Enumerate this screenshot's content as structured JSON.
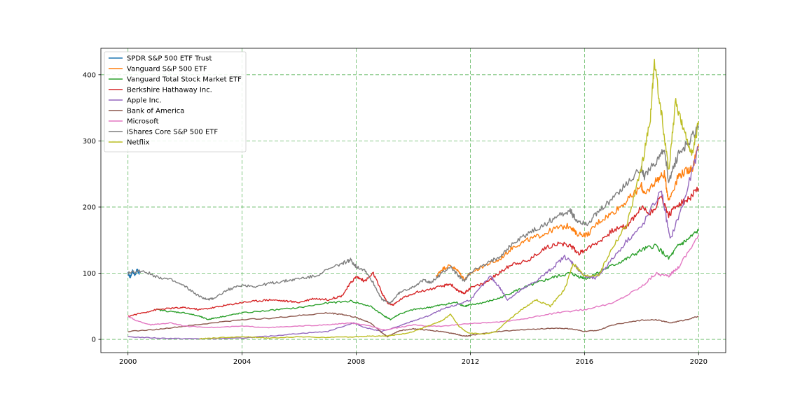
{
  "chart_data": {
    "type": "line",
    "title": "",
    "xlabel": "",
    "ylabel": "",
    "xlim": [
      1999.05,
      2020.95
    ],
    "ylim": [
      -20,
      440
    ],
    "xticks": [
      2000,
      2004,
      2008,
      2012,
      2016,
      2020
    ],
    "yticks": [
      0,
      100,
      200,
      300,
      400
    ],
    "grid": true,
    "legend_position": "upper-left",
    "series": [
      {
        "name": "SPDR S&P 500 ETF Trust",
        "color": "#1f77b4",
        "x": [
          2000.0,
          2000.08,
          2000.16,
          2000.24,
          2000.32,
          2000.4
        ],
        "y": [
          100,
          94,
          104,
          97,
          105,
          99
        ]
      },
      {
        "name": "Vanguard S&P 500 ETF",
        "color": "#ff7f0e",
        "x": [
          2010.8,
          2011.0,
          2011.3,
          2011.6,
          2011.8,
          2012.0,
          2012.5,
          2013.0,
          2013.5,
          2014.0,
          2014.5,
          2015.0,
          2015.5,
          2015.7,
          2016.1,
          2016.5,
          2017.0,
          2017.5,
          2018.0,
          2018.1,
          2018.5,
          2018.8,
          2018.95,
          2019.3,
          2019.6,
          2019.8,
          2020.0
        ],
        "y": [
          95,
          106,
          112,
          102,
          90,
          100,
          112,
          120,
          140,
          150,
          158,
          168,
          172,
          160,
          158,
          178,
          192,
          210,
          232,
          218,
          240,
          250,
          210,
          248,
          255,
          260,
          295
        ]
      },
      {
        "name": "Vanguard Total Stock Market ETF",
        "color": "#2ca02c",
        "x": [
          2001.0,
          2001.5,
          2002.0,
          2002.5,
          2002.8,
          2003.0,
          2003.5,
          2004.0,
          2005.0,
          2006.0,
          2007.0,
          2007.8,
          2008.5,
          2009.0,
          2009.2,
          2009.5,
          2010.0,
          2010.5,
          2011.0,
          2011.5,
          2011.8,
          2012.0,
          2012.5,
          2013.0,
          2013.5,
          2014.0,
          2014.5,
          2015.0,
          2015.5,
          2015.8,
          2016.1,
          2016.5,
          2017.0,
          2017.5,
          2018.0,
          2018.5,
          2018.95,
          2019.3,
          2019.6,
          2020.0
        ],
        "y": [
          45,
          42,
          40,
          35,
          30,
          32,
          36,
          40,
          44,
          48,
          55,
          58,
          50,
          35,
          30,
          38,
          45,
          48,
          52,
          56,
          50,
          52,
          56,
          62,
          72,
          80,
          88,
          95,
          100,
          95,
          92,
          102,
          112,
          122,
          135,
          142,
          122,
          142,
          150,
          165
        ]
      },
      {
        "name": "Berkshire Hathaway Inc.",
        "color": "#d62728",
        "x": [
          2000.0,
          2000.5,
          2001.0,
          2001.5,
          2002.0,
          2002.5,
          2003.0,
          2003.5,
          2004.0,
          2004.5,
          2005.0,
          2005.5,
          2006.0,
          2006.5,
          2007.0,
          2007.5,
          2007.8,
          2008.0,
          2008.3,
          2008.6,
          2008.9,
          2009.1,
          2009.3,
          2009.6,
          2010.0,
          2010.5,
          2011.0,
          2011.3,
          2011.6,
          2011.8,
          2012.0,
          2012.5,
          2013.0,
          2013.5,
          2014.0,
          2014.5,
          2015.0,
          2015.5,
          2015.8,
          2016.0,
          2016.5,
          2017.0,
          2017.5,
          2018.0,
          2018.3,
          2018.7,
          2018.95,
          2019.3,
          2019.6,
          2020.0
        ],
        "y": [
          35,
          40,
          45,
          47,
          48,
          45,
          48,
          52,
          56,
          58,
          60,
          58,
          56,
          62,
          60,
          66,
          85,
          95,
          88,
          100,
          70,
          55,
          52,
          62,
          70,
          75,
          80,
          84,
          72,
          70,
          78,
          85,
          100,
          115,
          118,
          135,
          145,
          142,
          130,
          135,
          148,
          165,
          172,
          200,
          190,
          215,
          188,
          205,
          210,
          228
        ]
      },
      {
        "name": "Apple Inc.",
        "color": "#9467bd",
        "x": [
          2000.0,
          2001.0,
          2002.0,
          2003.0,
          2004.0,
          2005.0,
          2006.0,
          2007.0,
          2007.9,
          2008.3,
          2008.9,
          2009.5,
          2010.0,
          2010.5,
          2011.0,
          2011.5,
          2012.0,
          2012.7,
          2013.0,
          2013.3,
          2013.8,
          2014.3,
          2014.8,
          2015.3,
          2015.6,
          2016.0,
          2016.4,
          2016.8,
          2017.5,
          2018.0,
          2018.7,
          2019.0,
          2019.5,
          2020.0
        ],
        "y": [
          4,
          2,
          1,
          1,
          2,
          5,
          9,
          12,
          25,
          18,
          12,
          20,
          28,
          35,
          45,
          52,
          60,
          95,
          80,
          60,
          75,
          88,
          105,
          125,
          115,
          95,
          92,
          112,
          150,
          170,
          225,
          150,
          210,
          290
        ]
      },
      {
        "name": "Bank of America",
        "color": "#8c564b",
        "x": [
          2000.0,
          2001.0,
          2002.0,
          2003.0,
          2004.0,
          2005.0,
          2006.0,
          2007.0,
          2007.5,
          2008.0,
          2008.5,
          2008.9,
          2009.1,
          2009.5,
          2010.0,
          2010.5,
          2011.0,
          2011.5,
          2011.8,
          2012.0,
          2012.5,
          2013.0,
          2014.0,
          2015.0,
          2015.5,
          2016.0,
          2016.5,
          2017.0,
          2018.0,
          2018.5,
          2019.0,
          2019.5,
          2020.0
        ],
        "y": [
          12,
          15,
          20,
          25,
          30,
          32,
          36,
          40,
          38,
          33,
          25,
          10,
          4,
          13,
          16,
          14,
          12,
          8,
          5,
          6,
          9,
          12,
          15,
          17,
          16,
          12,
          14,
          22,
          29,
          30,
          25,
          29,
          35
        ]
      },
      {
        "name": "Microsoft",
        "color": "#e377c2",
        "x": [
          2000.0,
          2000.3,
          2000.8,
          2001.5,
          2002.0,
          2003.0,
          2004.0,
          2005.0,
          2006.0,
          2007.0,
          2007.8,
          2008.5,
          2009.0,
          2009.5,
          2010.0,
          2010.5,
          2011.0,
          2012.0,
          2013.0,
          2014.0,
          2015.0,
          2016.0,
          2017.0,
          2018.0,
          2018.5,
          2018.95,
          2019.3,
          2020.0
        ],
        "y": [
          35,
          28,
          22,
          25,
          20,
          18,
          20,
          18,
          20,
          22,
          25,
          20,
          14,
          18,
          22,
          20,
          20,
          24,
          26,
          32,
          40,
          45,
          55,
          80,
          100,
          95,
          110,
          158
        ]
      },
      {
        "name": "iShares Core S&P 500 ETF",
        "color": "#7f7f7f",
        "x": [
          2000.0,
          2000.5,
          2001.0,
          2001.5,
          2002.0,
          2002.5,
          2002.8,
          2003.0,
          2003.5,
          2004.0,
          2004.5,
          2005.0,
          2005.5,
          2006.0,
          2006.5,
          2007.0,
          2007.5,
          2007.8,
          2008.0,
          2008.3,
          2008.6,
          2008.9,
          2009.2,
          2009.5,
          2010.0,
          2010.4,
          2010.6,
          2011.0,
          2011.3,
          2011.6,
          2011.8,
          2012.0,
          2012.5,
          2013.0,
          2013.5,
          2014.0,
          2014.5,
          2015.0,
          2015.5,
          2015.7,
          2016.1,
          2016.5,
          2017.0,
          2017.5,
          2018.0,
          2018.1,
          2018.5,
          2018.8,
          2018.95,
          2019.3,
          2019.6,
          2020.0
        ],
        "y": [
          100,
          104,
          95,
          90,
          80,
          65,
          60,
          62,
          75,
          82,
          80,
          85,
          88,
          92,
          95,
          105,
          115,
          120,
          110,
          105,
          85,
          60,
          55,
          70,
          80,
          90,
          85,
          100,
          110,
          95,
          88,
          102,
          112,
          125,
          145,
          160,
          170,
          185,
          195,
          180,
          175,
          192,
          215,
          235,
          260,
          245,
          270,
          285,
          240,
          280,
          295,
          320
        ]
      },
      {
        "name": "Netflix",
        "color": "#bcbd22",
        "x": [
          2002.5,
          2003.0,
          2004.0,
          2004.5,
          2005.0,
          2006.0,
          2007.0,
          2008.0,
          2008.5,
          2009.0,
          2009.5,
          2010.0,
          2010.5,
          2011.0,
          2011.3,
          2011.6,
          2011.9,
          2012.5,
          2012.9,
          2013.3,
          2013.8,
          2014.3,
          2014.8,
          2015.3,
          2015.6,
          2016.0,
          2016.5,
          2017.0,
          2017.5,
          2018.0,
          2018.3,
          2018.45,
          2018.7,
          2018.95,
          2019.2,
          2019.5,
          2019.8,
          2020.0
        ],
        "y": [
          1,
          2,
          4,
          3,
          2,
          4,
          3,
          4,
          5,
          5,
          7,
          12,
          20,
          28,
          38,
          20,
          10,
          8,
          12,
          28,
          45,
          60,
          50,
          75,
          115,
          95,
          98,
          140,
          175,
          260,
          330,
          418,
          340,
          255,
          360,
          310,
          280,
          330
        ]
      }
    ]
  }
}
